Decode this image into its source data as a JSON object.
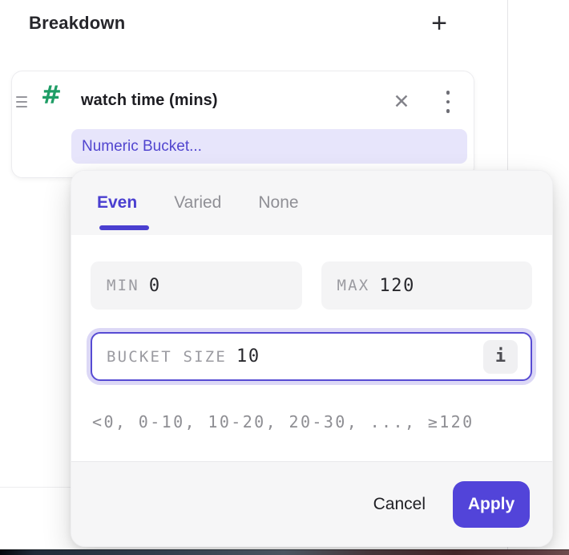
{
  "header": {
    "title": "Breakdown",
    "add_icon": "+"
  },
  "card": {
    "title": "watch time (mins)",
    "type_icon": "#",
    "close_icon": "✕",
    "bucket_pill_label": "Numeric Bucket..."
  },
  "popover": {
    "tabs": [
      {
        "label": "Even",
        "active": true
      },
      {
        "label": "Varied",
        "active": false
      },
      {
        "label": "None",
        "active": false
      }
    ],
    "fields": {
      "min": {
        "label": "MIN",
        "value": "0"
      },
      "max": {
        "label": "MAX",
        "value": "120"
      },
      "bucket_size": {
        "label": "BUCKET SIZE",
        "value": "10",
        "info_icon": "i"
      }
    },
    "preview": "<0, 0-10, 10-20, 20-30, ..., ≥120",
    "cancel_label": "Cancel",
    "apply_label": "Apply"
  },
  "colors": {
    "accent_indigo": "#5244d9",
    "tab_active": "#4a3fd0",
    "pill_bg": "#e7e5fb",
    "pill_text": "#5145cf",
    "hash_green": "#1f9d66",
    "field_bg": "#f4f4f5",
    "panel_gray": "#f6f6f7",
    "focus_ring": "#dcd8f6"
  }
}
